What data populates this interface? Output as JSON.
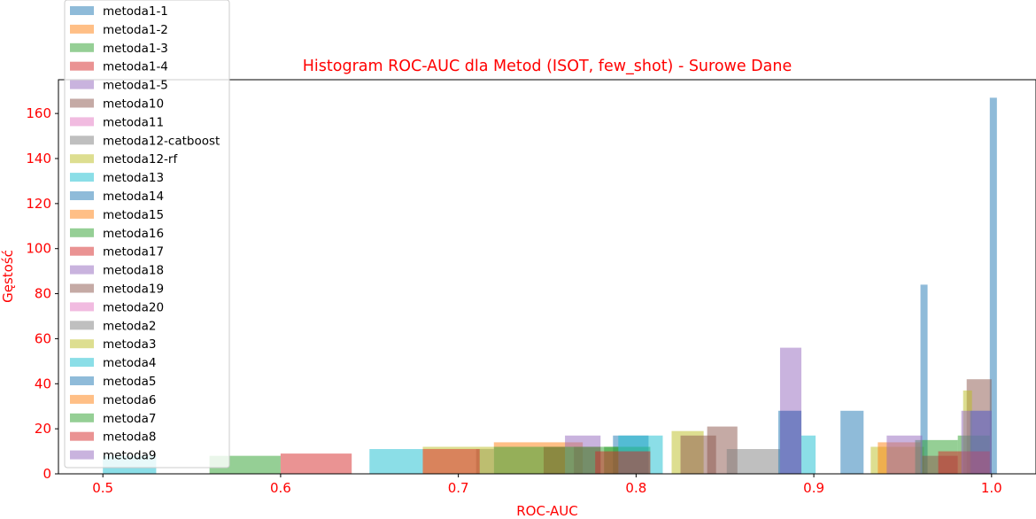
{
  "chart_data": {
    "type": "histogram",
    "title": "Histogram ROC-AUC dla Metod (ISOT, few_shot) - Surowe Dane",
    "xlabel": "ROC-AUC",
    "ylabel": "Gęstość",
    "xlim": [
      0.475,
      1.025
    ],
    "ylim": [
      0,
      175
    ],
    "xticks": [
      "0.5",
      "0.6",
      "0.7",
      "0.8",
      "0.9",
      "1.0"
    ],
    "yticks": [
      "0",
      "20",
      "40",
      "60",
      "80",
      "100",
      "120",
      "140",
      "160"
    ],
    "label_color": "#ff0000",
    "legend_position": "upper-left",
    "series": [
      {
        "name": "metoda1-1",
        "color": "#1f77b4",
        "bars": [
          [
            0.999,
            1.003,
            167
          ]
        ]
      },
      {
        "name": "metoda1-2",
        "color": "#ff7f0e",
        "bars": []
      },
      {
        "name": "metoda1-3",
        "color": "#2ca02c",
        "bars": []
      },
      {
        "name": "metoda1-4",
        "color": "#d62728",
        "bars": []
      },
      {
        "name": "metoda1-5",
        "color": "#9467bd",
        "bars": []
      },
      {
        "name": "metoda10",
        "color": "#8c564b",
        "bars": [
          [
            0.84,
            0.857,
            21
          ],
          [
            0.986,
            1.0,
            42
          ]
        ]
      },
      {
        "name": "metoda11",
        "color": "#e377c2",
        "bars": []
      },
      {
        "name": "metoda12-catboost",
        "color": "#7f7f7f",
        "bars": [
          [
            0.71,
            0.72,
            11
          ],
          [
            0.851,
            0.881,
            11
          ]
        ]
      },
      {
        "name": "metoda12-rf",
        "color": "#bcbd22",
        "bars": [
          [
            0.68,
            0.72,
            12
          ],
          [
            0.82,
            0.838,
            19
          ],
          [
            0.932,
            0.962,
            12
          ],
          [
            0.984,
            0.989,
            37
          ]
        ]
      },
      {
        "name": "metoda13",
        "color": "#17becf",
        "bars": []
      },
      {
        "name": "metoda14",
        "color": "#1f77b4",
        "bars": [
          [
            0.915,
            0.928,
            28
          ],
          [
            0.96,
            0.964,
            84
          ],
          [
            0.787,
            0.807,
            17
          ],
          [
            0.881,
            0.893,
            28
          ]
        ]
      },
      {
        "name": "metoda15",
        "color": "#ff7f0e",
        "bars": [
          [
            0.72,
            0.77,
            14
          ],
          [
            0.936,
            0.96,
            14
          ]
        ]
      },
      {
        "name": "metoda16",
        "color": "#2ca02c",
        "bars": [
          [
            0.782,
            0.808,
            12
          ],
          [
            0.957,
            0.981,
            15
          ],
          [
            0.981,
            0.999,
            17
          ]
        ]
      },
      {
        "name": "metoda17",
        "color": "#d62728",
        "bars": [
          [
            0.748,
            0.76,
            12
          ],
          [
            0.765,
            0.78,
            12
          ]
        ]
      },
      {
        "name": "metoda18",
        "color": "#9467bd",
        "bars": [
          [
            0.76,
            0.78,
            17
          ],
          [
            0.941,
            0.961,
            17
          ]
        ]
      },
      {
        "name": "metoda19",
        "color": "#8c564b",
        "bars": [
          [
            0.825,
            0.845,
            17
          ],
          [
            0.961,
            0.981,
            8
          ]
        ]
      },
      {
        "name": "metoda20",
        "color": "#e377c2",
        "bars": []
      },
      {
        "name": "metoda2",
        "color": "#7f7f7f",
        "bars": []
      },
      {
        "name": "metoda3",
        "color": "#bcbd22",
        "bars": []
      },
      {
        "name": "metoda4",
        "color": "#17becf",
        "bars": [
          [
            0.5,
            0.53,
            8
          ],
          [
            0.65,
            0.68,
            11
          ],
          [
            0.79,
            0.815,
            17
          ],
          [
            0.893,
            0.901,
            17
          ]
        ]
      },
      {
        "name": "metoda5",
        "color": "#1f77b4",
        "bars": [
          [
            0.88,
            0.893,
            28
          ],
          [
            0.988,
            1.0,
            28
          ]
        ]
      },
      {
        "name": "metoda6",
        "color": "#ff7f0e",
        "bars": []
      },
      {
        "name": "metoda7",
        "color": "#2ca02c",
        "bars": [
          [
            0.56,
            0.6,
            8
          ],
          [
            0.72,
            0.79,
            12
          ]
        ]
      },
      {
        "name": "metoda8",
        "color": "#d62728",
        "bars": [
          [
            0.6,
            0.64,
            9
          ],
          [
            0.68,
            0.712,
            11
          ],
          [
            0.777,
            0.808,
            10
          ],
          [
            0.97,
            0.999,
            10
          ]
        ]
      },
      {
        "name": "metoda9",
        "color": "#9467bd",
        "bars": [
          [
            0.881,
            0.893,
            56
          ],
          [
            0.983,
            1.0,
            28
          ]
        ]
      }
    ]
  }
}
